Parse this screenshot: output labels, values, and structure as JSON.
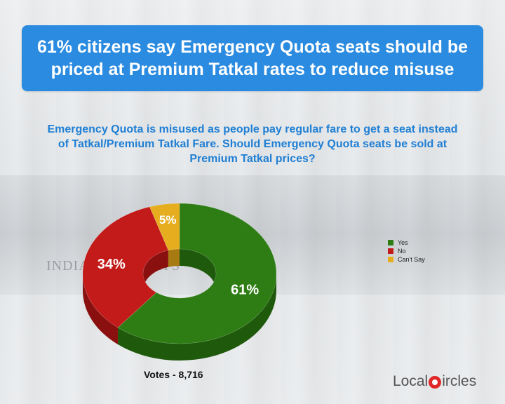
{
  "header": {
    "title": "61% citizens say Emergency Quota seats should be priced at Premium Tatkal rates to reduce misuse"
  },
  "question": "Emergency Quota is misused as people pay regular fare to get a seat instead of Tatkal/Premium Tatkal Fare. Should Emergency Quota seats be sold at Premium Tatkal prices?",
  "background_text": "INDIAN RAILWAYS",
  "chart_data": {
    "type": "pie",
    "style": "3d-donut",
    "slices": [
      {
        "label": "Yes",
        "value": 61,
        "display": "61%",
        "color": "#2e7d14",
        "side": "#1f5a0c"
      },
      {
        "label": "No",
        "value": 34,
        "display": "34%",
        "color": "#c31a1a",
        "side": "#8a1010"
      },
      {
        "label": "Can't Say",
        "value": 5,
        "display": "5%",
        "color": "#e6ae1f",
        "side": "#a87a12"
      }
    ],
    "legend": {
      "placement": "right",
      "entries": [
        "Yes",
        "No",
        "Can't Say"
      ]
    }
  },
  "footer": {
    "votes": "Votes - 8,716",
    "logo_left": "Local",
    "logo_right": "ircles"
  }
}
